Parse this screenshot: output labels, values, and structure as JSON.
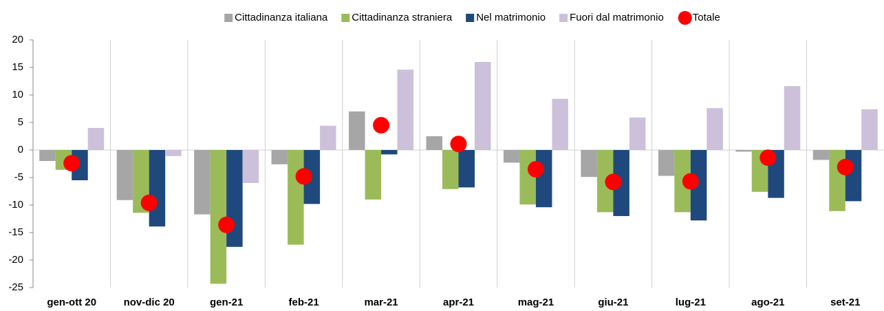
{
  "chart_data": {
    "type": "bar",
    "categories": [
      "gen-ott 20",
      "nov-dic 20",
      "gen-21",
      "feb-21",
      "mar-21",
      "apr-21",
      "mag-21",
      "giu-21",
      "lug-21",
      "ago-21",
      "set-21"
    ],
    "series": [
      {
        "name": "Cittadinanza italiana",
        "color": "#a6a6a6",
        "values": [
          -2.0,
          -9.1,
          -11.7,
          -2.6,
          7.0,
          2.5,
          -2.3,
          -4.9,
          -4.7,
          -0.3,
          -1.8
        ]
      },
      {
        "name": "Cittadinanza straniera",
        "color": "#9bbb59",
        "values": [
          -3.6,
          -11.4,
          -24.3,
          -17.2,
          -9.0,
          -7.1,
          -9.9,
          -11.3,
          -11.3,
          -7.6,
          -11.1
        ]
      },
      {
        "name": "Nel matrimonio",
        "color": "#1f497d",
        "values": [
          -5.5,
          -13.9,
          -17.6,
          -9.8,
          -0.8,
          -6.8,
          -10.4,
          -12.0,
          -12.8,
          -8.7,
          -9.3
        ]
      },
      {
        "name": "Fuori dal matrimonio",
        "color": "#ccc0da",
        "values": [
          4.0,
          -1.1,
          -6.0,
          4.4,
          14.6,
          16.0,
          9.3,
          5.9,
          7.6,
          11.6,
          7.4
        ]
      },
      {
        "name": "Totale",
        "color": "#ff0000",
        "type": "scatter",
        "values": [
          -2.4,
          -9.6,
          -13.6,
          -4.8,
          4.5,
          1.1,
          -3.5,
          -5.8,
          -5.7,
          -1.4,
          -3.1
        ]
      }
    ],
    "ylim": [
      -25,
      20
    ],
    "yticks": [
      -25,
      -20,
      -15,
      -10,
      -5,
      0,
      5,
      10,
      15,
      20
    ],
    "legend": "top"
  }
}
